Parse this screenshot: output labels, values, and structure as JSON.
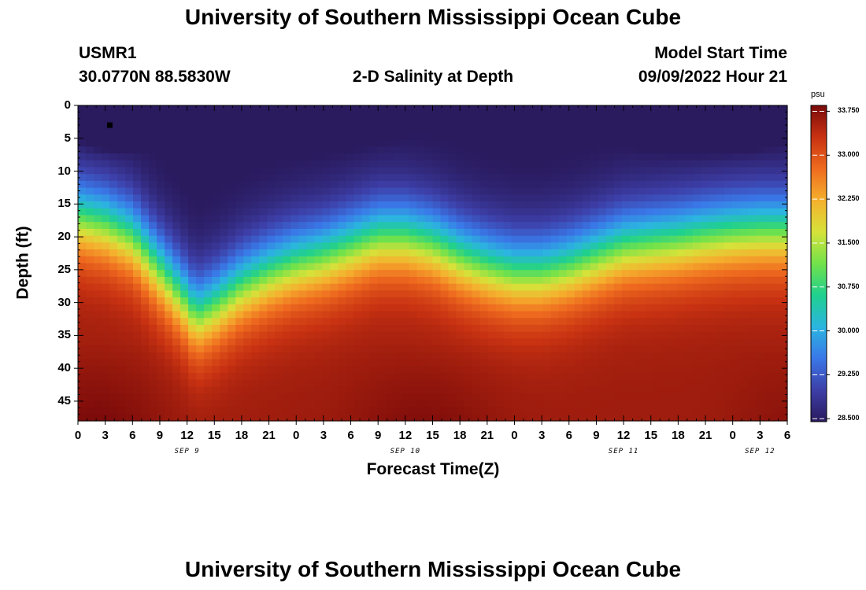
{
  "header": {
    "title": "University of Southern Mississippi Ocean Cube",
    "station_id": "USMR1",
    "station_coords": "30.0770N  88.5830W",
    "plot_title": "2-D Salinity at Depth",
    "model_start_label": "Model Start Time",
    "model_start_value": "09/09/2022 Hour 21"
  },
  "footer": {
    "title": "University of Southern Mississippi Ocean Cube"
  },
  "chart_data": {
    "type": "heatmap",
    "title": "2-D Salinity at Depth",
    "xlabel": "Forecast Time(Z)",
    "ylabel": "Depth (ft)",
    "x_ticks": [
      "0",
      "3",
      "6",
      "9",
      "12",
      "15",
      "18",
      "21",
      "0",
      "3",
      "6",
      "9",
      "12",
      "15",
      "18",
      "21",
      "0",
      "3",
      "6",
      "9",
      "12",
      "15",
      "18",
      "21",
      "0",
      "3",
      "6"
    ],
    "x_day_labels": [
      {
        "label": "SEP 9",
        "hours_from_start": 12
      },
      {
        "label": "SEP 10",
        "hours_from_start": 36
      },
      {
        "label": "SEP 11",
        "hours_from_start": 60
      },
      {
        "label": "SEP 12",
        "hours_from_start": 75
      }
    ],
    "x_range_hours": [
      0,
      78
    ],
    "y_ticks": [
      0,
      5,
      10,
      15,
      20,
      25,
      30,
      35,
      40,
      45
    ],
    "y_range_ft": [
      0,
      48
    ],
    "y_inverted": true,
    "colorbar": {
      "unit": "psu",
      "ticks": [
        "33.750",
        "33.000",
        "32.250",
        "31.500",
        "30.750",
        "30.000",
        "29.250",
        "28.500"
      ],
      "range": [
        28.45,
        33.85
      ],
      "colors": [
        "#2a1a5e",
        "#3d3fa8",
        "#3a78e8",
        "#2bb5e0",
        "#1fd08e",
        "#72e24a",
        "#d6e23a",
        "#f5b02e",
        "#ef6b1f",
        "#c83212",
        "#7a0a0a"
      ]
    },
    "surface_marker": {
      "hours": 3.5,
      "depth_ft": 3
    },
    "isohaline_profile": {
      "hours": [
        0,
        3,
        6,
        9,
        12,
        13,
        15,
        18,
        21,
        24,
        27,
        30,
        33,
        36,
        39,
        42,
        45,
        48,
        51,
        54,
        57,
        60,
        63,
        66,
        69,
        72,
        75,
        78
      ],
      "depth_31_ft": [
        17,
        18,
        20,
        25,
        30,
        32,
        30.5,
        27.5,
        25.5,
        24,
        23,
        21.5,
        20,
        20,
        21,
        23,
        24.5,
        25.5,
        25.5,
        24.5,
        23,
        21.5,
        21,
        20.5,
        19.8,
        19.3,
        19,
        19
      ]
    }
  }
}
